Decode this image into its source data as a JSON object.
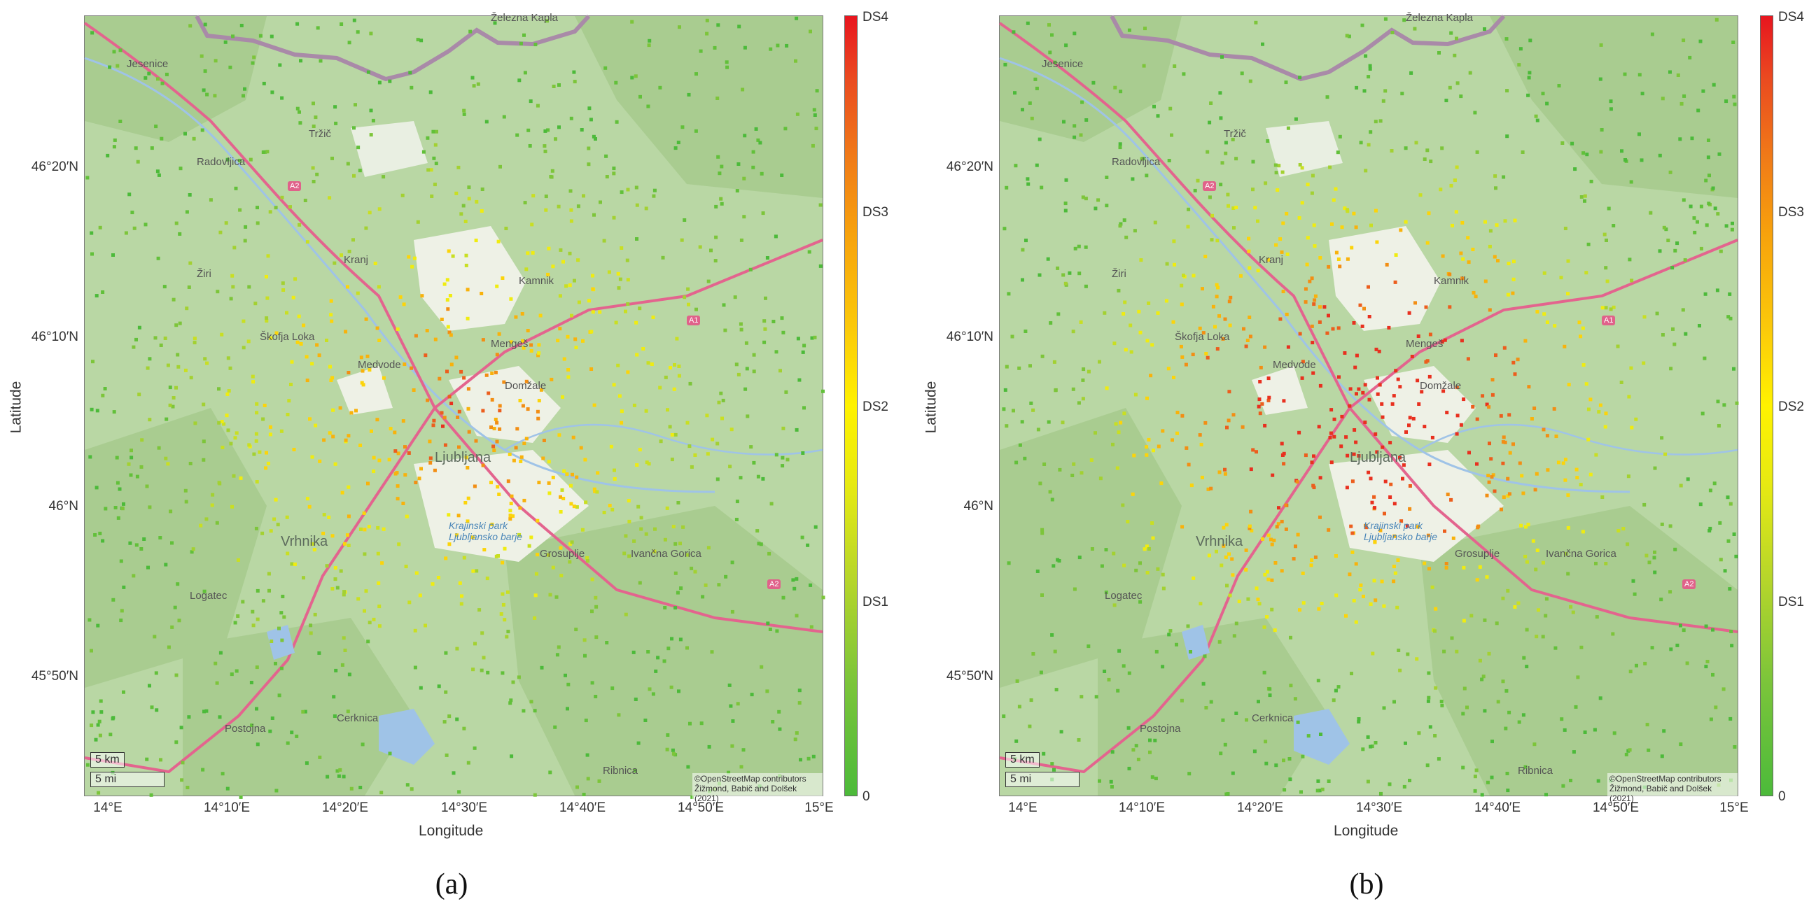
{
  "figure": {
    "panels": [
      {
        "id": "a",
        "caption": "(a)",
        "xlabel": "Longitude",
        "ylabel": "Latitude",
        "lat_ticks": [
          "46°20′N",
          "46°10′N",
          "46°N",
          "45°50′N"
        ],
        "lon_ticks": [
          "14°E",
          "14°10′E",
          "14°20′E",
          "14°30′E",
          "14°40′E",
          "14°50′E",
          "15°E"
        ],
        "colorbar_ticks": [
          "DS4",
          "DS3",
          "DS2",
          "DS1",
          "0"
        ],
        "scalebar": {
          "km": "5 km",
          "mi": "5 mi"
        },
        "attribution": [
          "©OpenStreetMap contributors",
          "Žižmond, Babič and Dolšek (2021)"
        ],
        "places": [
          "Jesenice",
          "Radovljica",
          "Tržič",
          "Kranj",
          "Žiri",
          "Škofja Loka",
          "Medvode",
          "Mengeš",
          "Kamnik",
          "Domžale",
          "Ljubljana",
          "Vrhnika",
          "Logatec",
          "Grosuplje",
          "Ivančna Gorica",
          "Postojna",
          "Cerknica",
          "Ribnica",
          "Krajinski park Ljubljansko barje",
          "Železna Kapla"
        ],
        "roads": [
          "A2",
          "A1",
          "A2"
        ]
      },
      {
        "id": "b",
        "caption": "(b)",
        "xlabel": "Longitude",
        "ylabel": "Latitude",
        "lat_ticks": [
          "46°20′N",
          "46°10′N",
          "46°N",
          "45°50′N"
        ],
        "lon_ticks": [
          "14°E",
          "14°10′E",
          "14°20′E",
          "14°30′E",
          "14°40′E",
          "14°50′E",
          "15°E"
        ],
        "colorbar_ticks": [
          "DS4",
          "DS3",
          "DS2",
          "DS1",
          "0"
        ],
        "scalebar": {
          "km": "5 km",
          "mi": "5 mi"
        },
        "attribution": [
          "©OpenStreetMap contributors",
          "Žižmond, Babič and Dolšek (2021)"
        ],
        "places": [
          "Jesenice",
          "Radovljica",
          "Tržič",
          "Kranj",
          "Žiri",
          "Škofja Loka",
          "Medvode",
          "Mengeš",
          "Kamnik",
          "Domžale",
          "Ljubljana",
          "Vrhnika",
          "Logatec",
          "Grosuplje",
          "Ivančna Gorica",
          "Postojna",
          "Cerknica",
          "Ribnica",
          "Krajinski park Ljubljansko barje",
          "Železna Kapla"
        ],
        "roads": [
          "A2",
          "A1",
          "A2"
        ]
      }
    ],
    "colorbar_colors": {
      "DS4": "#e8151f",
      "DS3": "#f07a18",
      "DS2": "#fff200",
      "DS1": "#a8d332",
      "0": "#4cba3a"
    },
    "basemap_colors": {
      "land": "#b9d7a4",
      "forest": "#a8cc8f",
      "urban": "#f1efe6",
      "water": "#9fc3e7",
      "border": "#a98aa8",
      "motorway": "#e3648e"
    }
  }
}
